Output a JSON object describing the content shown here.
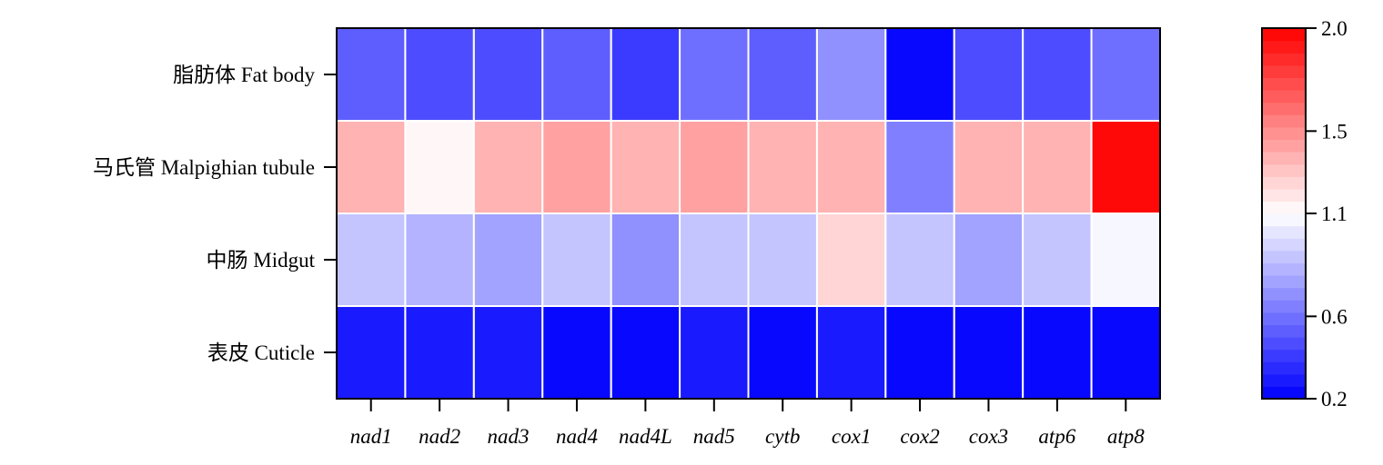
{
  "chart_data": {
    "type": "heatmap",
    "title": "",
    "xlabel": "",
    "ylabel": "",
    "rows": [
      "脂肪体 Fat body",
      "马氏管 Malpighian tubule",
      "中肠 Midgut",
      "表皮 Cuticle"
    ],
    "columns": [
      "nad1",
      "nad2",
      "nad3",
      "nad4",
      "nad4L",
      "nad5",
      "cytb",
      "cox1",
      "cox2",
      "cox3",
      "atp6",
      "atp8"
    ],
    "values": [
      [
        0.55,
        0.45,
        0.45,
        0.55,
        0.4,
        0.6,
        0.55,
        0.7,
        0.25,
        0.45,
        0.45,
        0.6
      ],
      [
        1.35,
        1.15,
        1.4,
        1.45,
        1.35,
        1.45,
        1.35,
        1.4,
        0.65,
        1.4,
        1.35,
        2.0
      ],
      [
        0.9,
        0.8,
        0.75,
        0.9,
        0.7,
        0.9,
        0.9,
        1.25,
        0.9,
        0.75,
        0.9,
        1.05
      ],
      [
        0.3,
        0.3,
        0.3,
        0.2,
        0.2,
        0.3,
        0.2,
        0.3,
        0.2,
        0.2,
        0.2,
        0.2
      ]
    ],
    "colorbar": {
      "min": 0.2,
      "max": 2.0,
      "ticks": [
        0.2,
        0.6,
        1.1,
        1.5,
        2.0
      ],
      "tick_labels": [
        "0.2",
        "0.6",
        "1.1",
        "1.5",
        "2.0"
      ],
      "low_color": "#0000ff",
      "mid_color": "#ffffff",
      "high_color": "#ff0000",
      "mid_value": 1.1,
      "levels": 30
    },
    "grid": true,
    "cell_border_color": "#ffffff"
  }
}
